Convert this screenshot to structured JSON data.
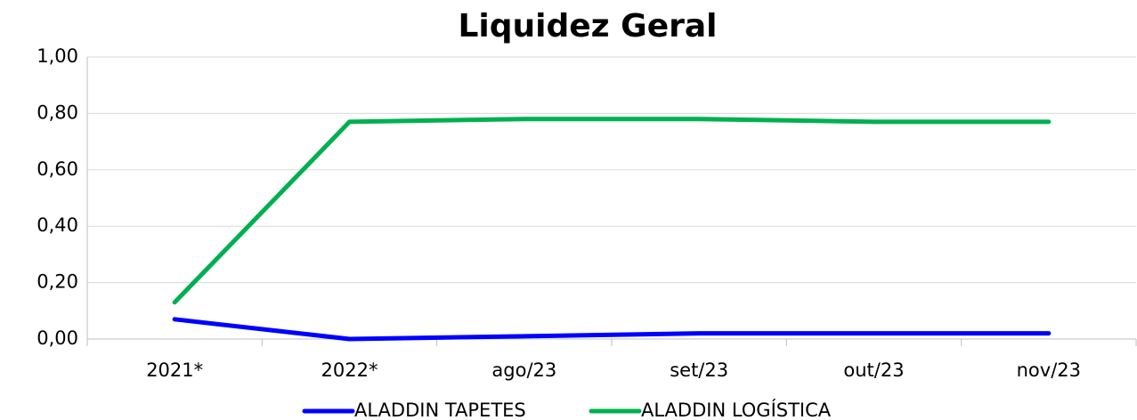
{
  "chart_data": {
    "type": "line",
    "title": "Liquidez Geral",
    "categories": [
      "2021*",
      "2022*",
      "ago/23",
      "set/23",
      "out/23",
      "nov/23"
    ],
    "series": [
      {
        "name": "ALADDIN TAPETES",
        "color": "#0000ff",
        "values": [
          0.07,
          0.0,
          0.01,
          0.02,
          0.02,
          0.02
        ]
      },
      {
        "name": "ALADDIN LOGÍSTICA",
        "color": "#00b050",
        "values": [
          0.13,
          0.77,
          0.78,
          0.78,
          0.77,
          0.77
        ]
      }
    ],
    "ylim": [
      0,
      1
    ],
    "yticks": [
      {
        "value": 0,
        "label": "0,00"
      },
      {
        "value": 0.2,
        "label": "0,20"
      },
      {
        "value": 0.4,
        "label": "0,40"
      },
      {
        "value": 0.6,
        "label": "0,60"
      },
      {
        "value": 0.8,
        "label": "0,80"
      },
      {
        "value": 1,
        "label": "1,00"
      }
    ],
    "grid": true,
    "legend": "bottom"
  }
}
